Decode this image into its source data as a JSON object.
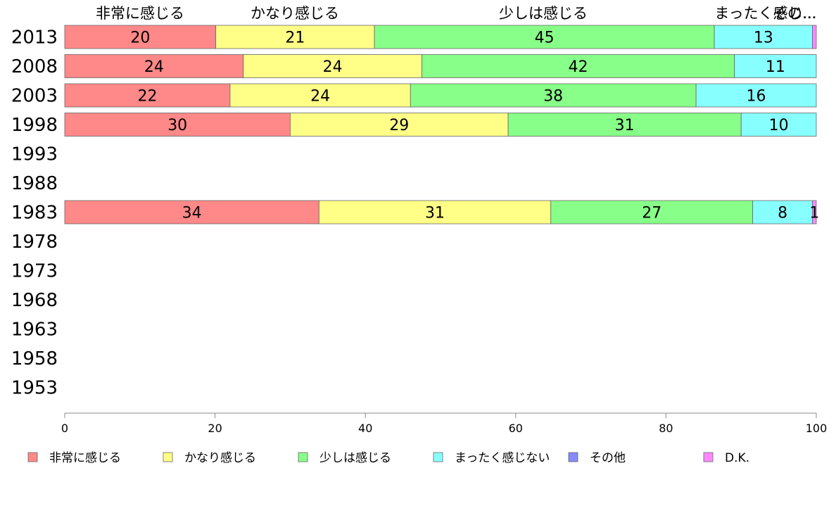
{
  "chart_data": {
    "type": "bar",
    "orientation": "horizontal",
    "stacked": true,
    "categories": [
      "2013",
      "2008",
      "2003",
      "1998",
      "1993",
      "1988",
      "1983",
      "1978",
      "1973",
      "1968",
      "1963",
      "1958",
      "1953"
    ],
    "column_headers": [
      "非常に感じる",
      "かなり感じる",
      "少しは感じる",
      "まったく感じ...",
      "その..."
    ],
    "series": [
      {
        "name": "非常に感じる",
        "color": "#ff8888",
        "values": [
          20,
          24,
          22,
          30,
          null,
          null,
          34,
          null,
          null,
          null,
          null,
          null,
          null
        ]
      },
      {
        "name": "かなり感じる",
        "color": "#ffff88",
        "values": [
          21,
          24,
          24,
          29,
          null,
          null,
          31,
          null,
          null,
          null,
          null,
          null,
          null
        ]
      },
      {
        "name": "少しは感じる",
        "color": "#88ff88",
        "values": [
          45,
          42,
          38,
          31,
          null,
          null,
          27,
          null,
          null,
          null,
          null,
          null,
          null
        ]
      },
      {
        "name": "まったく感じない",
        "color": "#88ffff",
        "values": [
          13,
          11,
          16,
          10,
          null,
          null,
          8,
          null,
          null,
          null,
          null,
          null,
          null
        ]
      },
      {
        "name": "その他",
        "color": "#8888ff",
        "values": [
          0,
          0,
          0,
          0,
          null,
          null,
          0,
          null,
          null,
          null,
          null,
          null,
          null
        ]
      },
      {
        "name": "D.K.",
        "color": "#ff88ff",
        "values": [
          0.5,
          0,
          0,
          0,
          null,
          null,
          0.5,
          null,
          null,
          null,
          null,
          null,
          null
        ]
      }
    ],
    "data_labels": [
      [
        "20",
        "21",
        "45",
        "13",
        "",
        ""
      ],
      [
        "24",
        "24",
        "42",
        "11",
        "",
        ""
      ],
      [
        "22",
        "24",
        "38",
        "16",
        "",
        ""
      ],
      [
        "30",
        "29",
        "31",
        "10",
        "",
        ""
      ],
      [],
      [],
      [
        "34",
        "31",
        "27",
        "8",
        "",
        "1"
      ],
      [],
      [],
      [],
      [],
      [],
      []
    ],
    "xlim": [
      0,
      100
    ],
    "xticks": [
      "0",
      "20",
      "40",
      "60",
      "80",
      "100"
    ],
    "legend": {
      "placement": "bottom"
    },
    "grid": false
  }
}
